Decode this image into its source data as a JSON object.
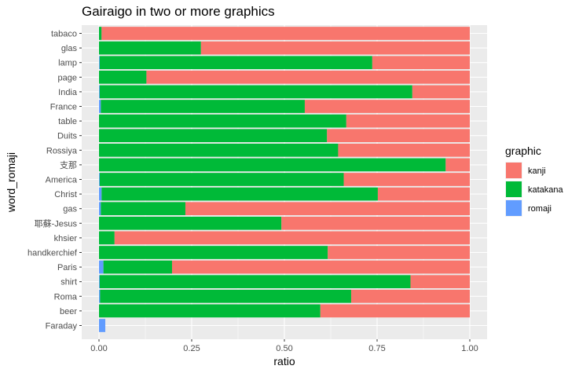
{
  "chart_data": {
    "type": "bar",
    "orientation": "horizontal",
    "stacked": true,
    "title": "Gairaigo in two or more graphics",
    "xlabel": "ratio",
    "ylabel": "word_romaji",
    "xlim": [
      0,
      1
    ],
    "xticks": [
      "0.00",
      "0.25",
      "0.50",
      "0.75",
      "1.00"
    ],
    "grid": true,
    "legend_position": "right",
    "legend_title": "graphic",
    "categories": [
      "tabaco",
      "glas",
      "lamp",
      "page",
      "India",
      "France",
      "table",
      "Duits",
      "Rossiya",
      "支那",
      "America",
      "Christ",
      "gas",
      "耶蘇-Jesus",
      "khsier",
      "handkerchief",
      "Paris",
      "shirt",
      "Roma",
      "beer",
      "Faraday"
    ],
    "series": [
      {
        "name": "romaji",
        "color": "#619CFF",
        "values": [
          0,
          0,
          0.002,
          0,
          0.002,
          0.005,
          0,
          0,
          0,
          0,
          0.002,
          0.007,
          0.005,
          0,
          0,
          0,
          0.012,
          0.002,
          0.003,
          0,
          0.017
        ]
      },
      {
        "name": "katakana",
        "color": "#00BA38",
        "values": [
          0.007,
          0.275,
          0.735,
          0.128,
          0.843,
          0.55,
          0.667,
          0.615,
          0.645,
          0.935,
          0.658,
          0.745,
          0.228,
          0.492,
          0.042,
          0.617,
          0.185,
          0.838,
          0.677,
          0.597,
          0
        ]
      },
      {
        "name": "kanji",
        "color": "#F8766D",
        "values": [
          0.993,
          0.725,
          0.263,
          0.872,
          0.155,
          0.445,
          0.333,
          0.385,
          0.355,
          0.065,
          0.34,
          0.248,
          0.767,
          0.508,
          0.958,
          0.383,
          0.803,
          0.16,
          0.32,
          0.403,
          0
        ]
      }
    ],
    "legend_order": [
      "kanji",
      "katakana",
      "romaji"
    ]
  },
  "theme": {
    "panel_bg": "#EBEBEB",
    "grid_major": "#FFFFFF",
    "tick_color": "#333333"
  }
}
